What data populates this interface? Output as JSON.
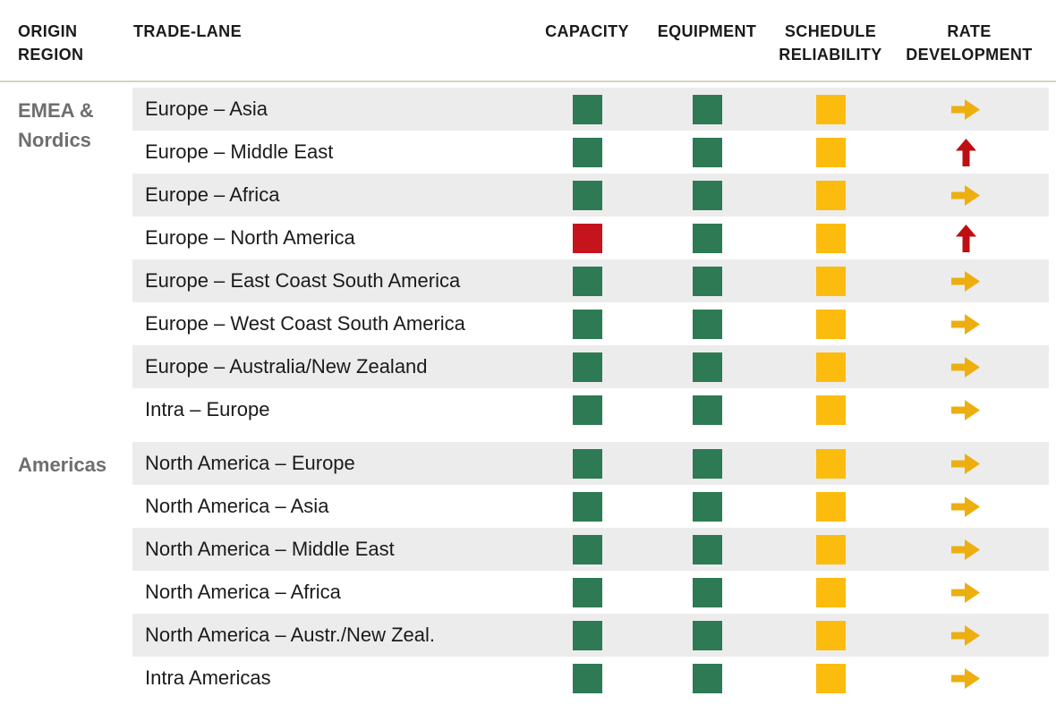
{
  "header": {
    "origin_region": "ORIGIN REGION",
    "trade_lane": "TRADE-LANE",
    "capacity": "CAPACITY",
    "equipment": "EQUIPMENT",
    "schedule_reliability": "SCHEDULE RELIABILITY",
    "rate_development": "RATE DEVELOPMENT"
  },
  "chart_data": {
    "type": "table",
    "columns": [
      "ORIGIN REGION",
      "TRADE-LANE",
      "CAPACITY",
      "EQUIPMENT",
      "SCHEDULE RELIABILITY",
      "RATE DEVELOPMENT"
    ],
    "status_colors": {
      "green": "#2d7a54",
      "yellow": "#fcbc0e",
      "red": "#c6141c"
    },
    "arrow_colors": {
      "right": "#edaf0f",
      "up": "#be0e11"
    },
    "stripe_color": "#ececec",
    "divider_color": "#d9d3c1",
    "region_label_color": "#6e6e6e",
    "sections": [
      {
        "region": "EMEA & Nordics",
        "rows": [
          {
            "lane": "Europe – Asia",
            "capacity": "green",
            "equipment": "green",
            "schedule_reliability": "yellow",
            "rate_development": "right"
          },
          {
            "lane": "Europe – Middle East",
            "capacity": "green",
            "equipment": "green",
            "schedule_reliability": "yellow",
            "rate_development": "up"
          },
          {
            "lane": "Europe – Africa",
            "capacity": "green",
            "equipment": "green",
            "schedule_reliability": "yellow",
            "rate_development": "right"
          },
          {
            "lane": "Europe – North America",
            "capacity": "red",
            "equipment": "green",
            "schedule_reliability": "yellow",
            "rate_development": "up"
          },
          {
            "lane": "Europe – East Coast South America",
            "capacity": "green",
            "equipment": "green",
            "schedule_reliability": "yellow",
            "rate_development": "right"
          },
          {
            "lane": "Europe – West Coast South America",
            "capacity": "green",
            "equipment": "green",
            "schedule_reliability": "yellow",
            "rate_development": "right"
          },
          {
            "lane": "Europe – Australia/New Zealand",
            "capacity": "green",
            "equipment": "green",
            "schedule_reliability": "yellow",
            "rate_development": "right"
          },
          {
            "lane": "Intra – Europe",
            "capacity": "green",
            "equipment": "green",
            "schedule_reliability": "yellow",
            "rate_development": "right"
          }
        ]
      },
      {
        "region": "Americas",
        "rows": [
          {
            "lane": "North America – Europe",
            "capacity": "green",
            "equipment": "green",
            "schedule_reliability": "yellow",
            "rate_development": "right"
          },
          {
            "lane": "North America – Asia",
            "capacity": "green",
            "equipment": "green",
            "schedule_reliability": "yellow",
            "rate_development": "right"
          },
          {
            "lane": "North America – Middle East",
            "capacity": "green",
            "equipment": "green",
            "schedule_reliability": "yellow",
            "rate_development": "right"
          },
          {
            "lane": "North America – Africa",
            "capacity": "green",
            "equipment": "green",
            "schedule_reliability": "yellow",
            "rate_development": "right"
          },
          {
            "lane": "North America – Austr./New Zeal.",
            "capacity": "green",
            "equipment": "green",
            "schedule_reliability": "yellow",
            "rate_development": "right"
          },
          {
            "lane": "Intra Americas",
            "capacity": "green",
            "equipment": "green",
            "schedule_reliability": "yellow",
            "rate_development": "right"
          }
        ]
      }
    ]
  }
}
